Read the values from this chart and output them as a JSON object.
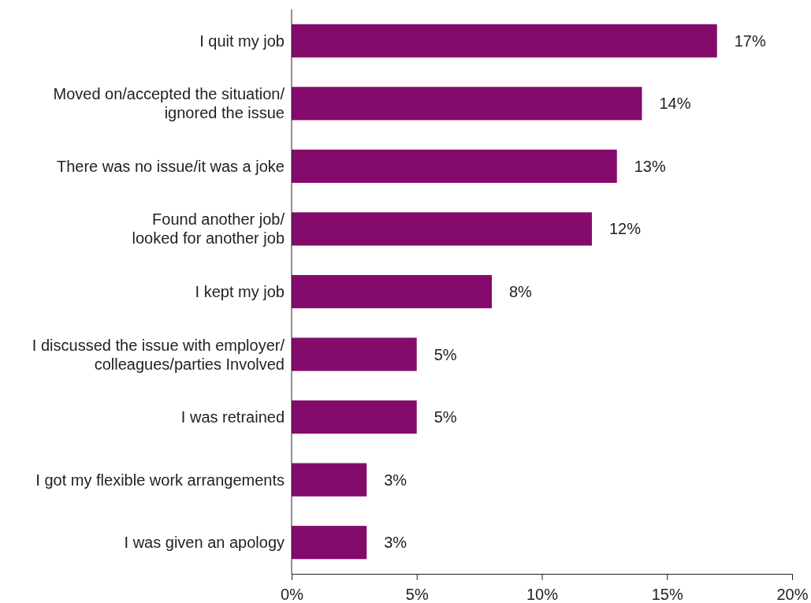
{
  "chart_data": {
    "type": "bar",
    "orientation": "horizontal",
    "categories": [
      "I quit my job",
      "Moved on/accepted the situation/\nignored the issue",
      "There was no issue/it was a joke",
      "Found another job/\nlooked for another job",
      "I kept my job",
      "I discussed the issue with employer/\ncolleagues/parties Involved",
      "I was retrained",
      "I got my flexible work arrangements",
      "I was given an apology"
    ],
    "values": [
      17,
      14,
      13,
      12,
      8,
      5,
      5,
      3,
      3
    ],
    "value_labels": [
      "17%",
      "14%",
      "13%",
      "12%",
      "8%",
      "5%",
      "5%",
      "3%",
      "3%"
    ],
    "color": "#840b6c",
    "xlim": [
      0,
      20
    ],
    "xticks": [
      {
        "value": 0,
        "label": "0%"
      },
      {
        "value": 5,
        "label": "5%"
      },
      {
        "value": 10,
        "label": "10%"
      },
      {
        "value": 15,
        "label": "15%"
      },
      {
        "value": 20,
        "label": "20%"
      }
    ],
    "grid": false
  }
}
